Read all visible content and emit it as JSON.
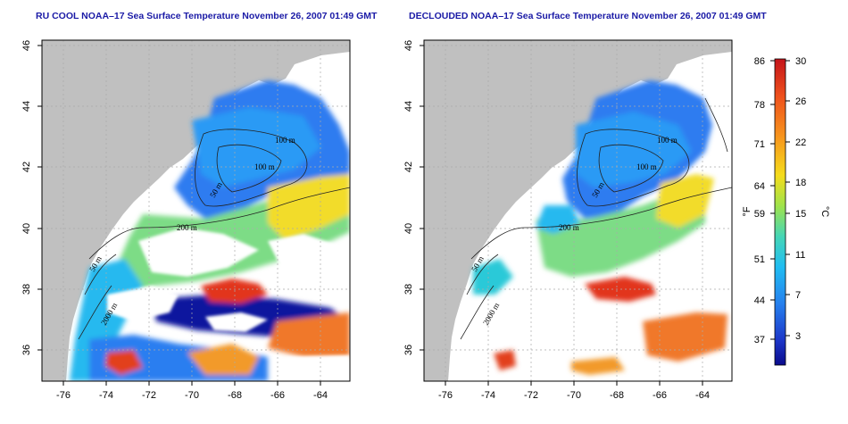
{
  "titles": {
    "left": "RU COOL NOAA–17 Sea Surface Temperature November 26, 2007 01:49 GMT",
    "right": "DECLOUDED NOAA–17 Sea Surface Temperature November 26, 2007 01:49 GMT"
  },
  "axes": {
    "x_ticks": [
      "-76",
      "-74",
      "-72",
      "-70",
      "-68",
      "-66",
      "-64"
    ],
    "y_ticks": [
      "36",
      "38",
      "40",
      "42",
      "44",
      "46"
    ],
    "x_range": [
      -77.2,
      -62.8
    ],
    "y_range": [
      35.0,
      46.2
    ]
  },
  "contour_labels": [
    "100 m",
    "100 m",
    "50 m",
    "200 m",
    "50 m",
    "2000 m"
  ],
  "colorbar": {
    "unit_left": "°F",
    "unit_right": "°C",
    "fahrenheit_ticks": [
      "86",
      "78",
      "71",
      "64",
      "59",
      "51",
      "44",
      "37"
    ],
    "celsius_ticks": [
      "30",
      "26",
      "22",
      "18",
      "15",
      "11",
      "7",
      "3"
    ],
    "colors": [
      "#d71e1e",
      "#f2641c",
      "#f9a51d",
      "#f3e11d",
      "#a7e04a",
      "#4fd4b1",
      "#23c6ef",
      "#2a8ef0",
      "#1f4fe0",
      "#0c0f9a"
    ]
  },
  "colors": {
    "land": "#c0c0c0",
    "cloud": "#ffffff",
    "grid": "#aaaaaa",
    "title": "#1a1aa6"
  }
}
